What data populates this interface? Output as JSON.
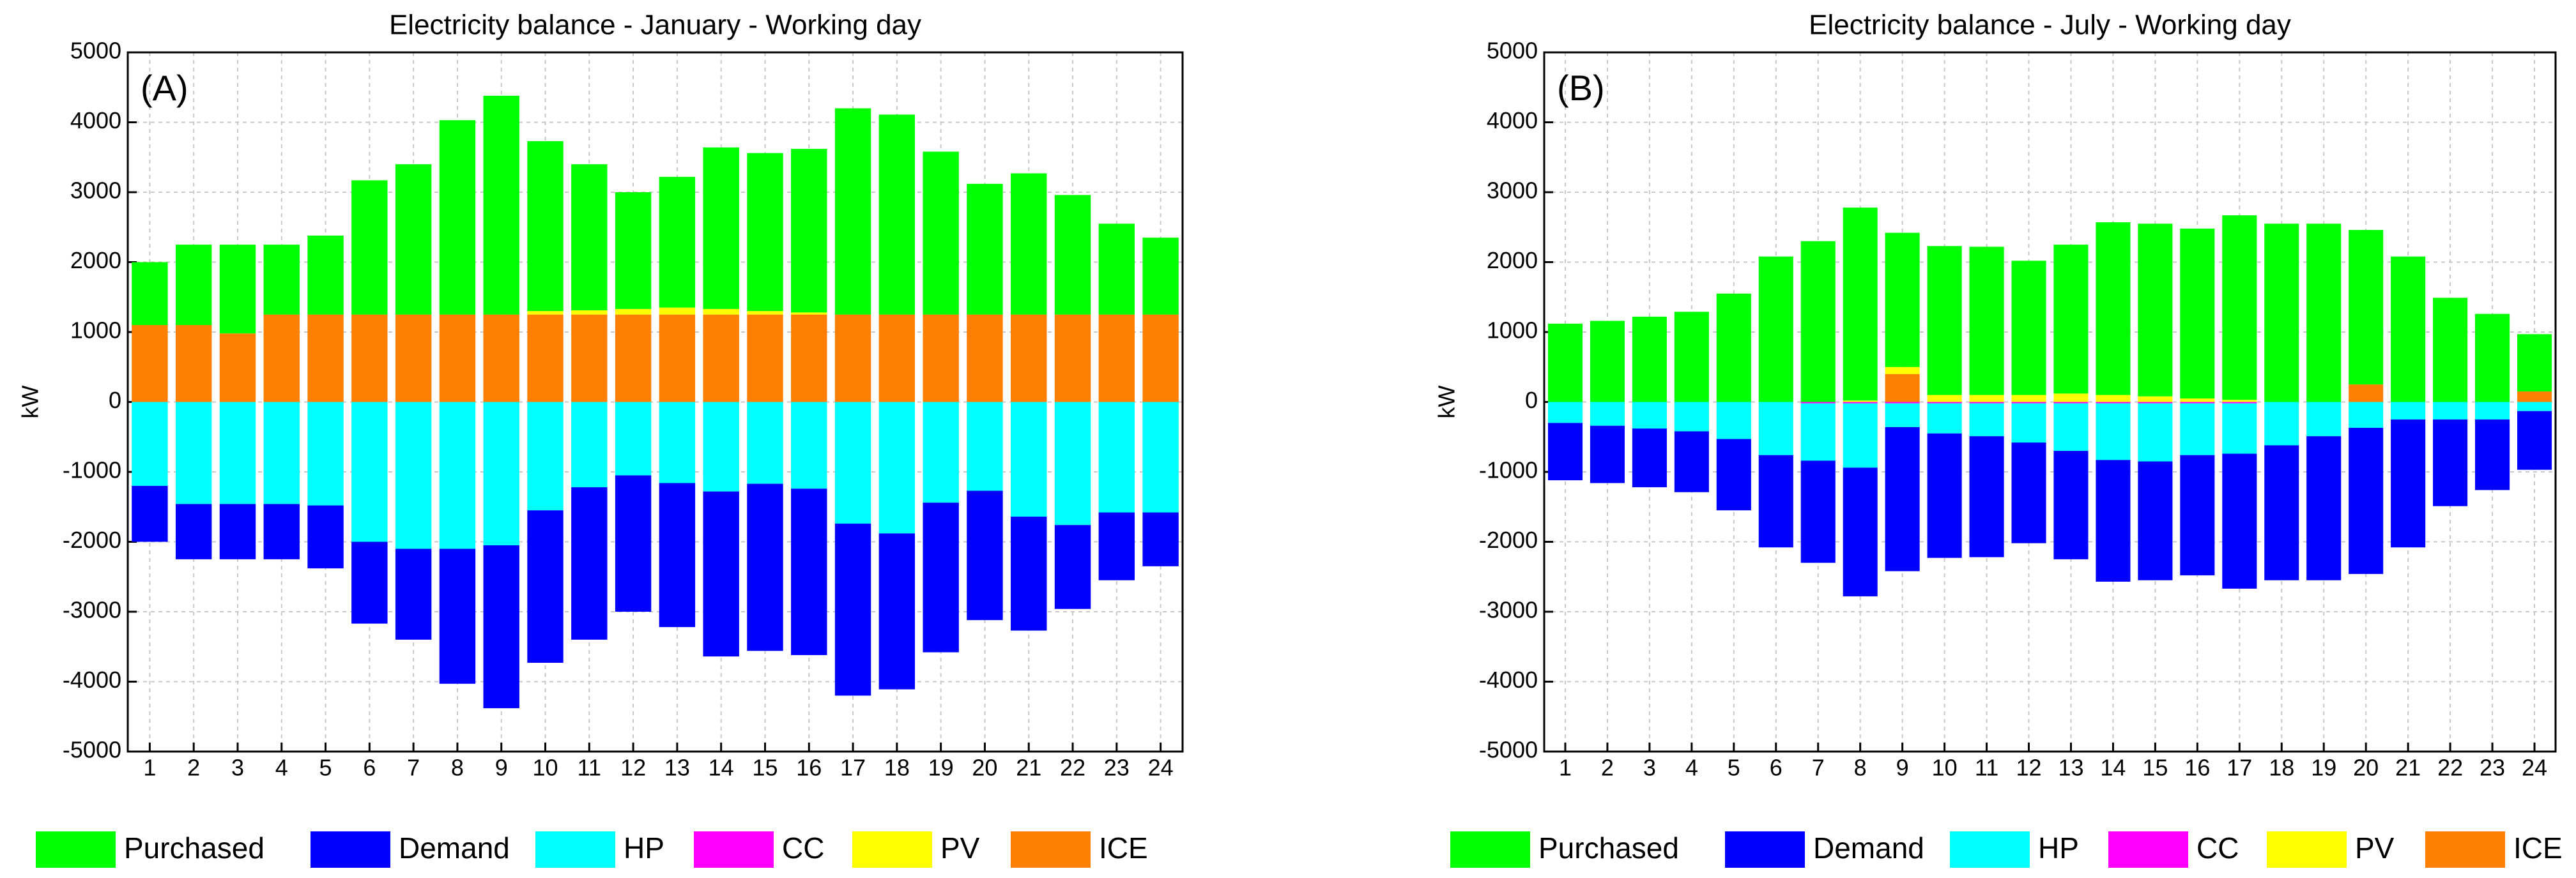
{
  "chart_data": [
    {
      "type": "bar",
      "title": "Electricity balance - January - Working day",
      "panel_label": "(A)",
      "ylabel": "kW",
      "categories": [
        "1",
        "2",
        "3",
        "4",
        "5",
        "6",
        "7",
        "8",
        "9",
        "10",
        "11",
        "12",
        "13",
        "14",
        "15",
        "16",
        "17",
        "18",
        "19",
        "20",
        "21",
        "22",
        "23",
        "24"
      ],
      "ylim": [
        -5000,
        5000
      ],
      "yticks": [
        -5000,
        -4000,
        -3000,
        -2000,
        -1000,
        0,
        1000,
        2000,
        3000,
        4000,
        5000
      ],
      "grid": true,
      "stacked": true,
      "series": [
        {
          "name": "Purchased",
          "color": "#00ff00",
          "values": [
            900,
            1150,
            1270,
            1000,
            1130,
            1920,
            2150,
            2780,
            3130,
            2430,
            2090,
            1670,
            1870,
            2310,
            2260,
            2340,
            2950,
            2860,
            2330,
            1870,
            2020,
            1710,
            1300,
            1100
          ]
        },
        {
          "name": "Demand",
          "color": "#0000ff",
          "values": [
            -800,
            -790,
            -790,
            -790,
            -900,
            -1170,
            -1300,
            -1930,
            -2330,
            -2180,
            -2180,
            -1950,
            -2060,
            -2360,
            -2390,
            -2380,
            -2460,
            -2230,
            -2140,
            -1850,
            -1630,
            -1200,
            -970,
            -770
          ]
        },
        {
          "name": "HP",
          "color": "#00ffff",
          "values": [
            -1200,
            -1460,
            -1460,
            -1460,
            -1480,
            -2000,
            -2100,
            -2100,
            -2050,
            -1550,
            -1220,
            -1050,
            -1160,
            -1280,
            -1170,
            -1240,
            -1740,
            -1880,
            -1440,
            -1270,
            -1640,
            -1760,
            -1580,
            -1580
          ]
        },
        {
          "name": "CC",
          "color": "#ff00ff",
          "values": [
            0,
            0,
            0,
            0,
            0,
            0,
            0,
            0,
            0,
            0,
            0,
            0,
            0,
            0,
            0,
            0,
            0,
            0,
            0,
            0,
            0,
            0,
            0,
            0
          ]
        },
        {
          "name": "PV",
          "color": "#ffff00",
          "values": [
            0,
            0,
            0,
            0,
            0,
            0,
            0,
            0,
            0,
            50,
            60,
            80,
            100,
            80,
            50,
            30,
            0,
            0,
            0,
            0,
            0,
            0,
            0,
            0
          ]
        },
        {
          "name": "ICE",
          "color": "#ff8000",
          "values": [
            1100,
            1100,
            980,
            1250,
            1250,
            1250,
            1250,
            1250,
            1250,
            1250,
            1250,
            1250,
            1250,
            1250,
            1250,
            1250,
            1250,
            1250,
            1250,
            1250,
            1250,
            1250,
            1250,
            1250
          ]
        }
      ]
    },
    {
      "type": "bar",
      "title": "Electricity balance - July - Working day",
      "panel_label": "(B)",
      "ylabel": "kW",
      "categories": [
        "1",
        "2",
        "3",
        "4",
        "5",
        "6",
        "7",
        "8",
        "9",
        "10",
        "11",
        "12",
        "13",
        "14",
        "15",
        "16",
        "17",
        "18",
        "19",
        "20",
        "21",
        "22",
        "23",
        "24"
      ],
      "ylim": [
        -5000,
        5000
      ],
      "yticks": [
        -5000,
        -4000,
        -3000,
        -2000,
        -1000,
        0,
        1000,
        2000,
        3000,
        4000,
        5000
      ],
      "grid": true,
      "stacked": true,
      "series": [
        {
          "name": "Purchased",
          "color": "#00ff00",
          "values": [
            1120,
            1160,
            1220,
            1290,
            1550,
            2080,
            2300,
            2760,
            1920,
            2130,
            2120,
            1920,
            2130,
            2470,
            2470,
            2430,
            2640,
            2550,
            2550,
            2210,
            2080,
            1490,
            1260,
            820
          ]
        },
        {
          "name": "Demand",
          "color": "#0000ff",
          "values": [
            -820,
            -820,
            -840,
            -870,
            -1020,
            -1320,
            -1460,
            -1840,
            -2060,
            -1780,
            -1730,
            -1440,
            -1550,
            -1740,
            -1700,
            -1720,
            -1930,
            -1930,
            -2060,
            -2090,
            -1830,
            -1240,
            -1010,
            -840
          ]
        },
        {
          "name": "HP",
          "color": "#00ffff",
          "values": [
            -300,
            -340,
            -380,
            -420,
            -530,
            -760,
            -820,
            -920,
            -340,
            -430,
            -470,
            -560,
            -680,
            -810,
            -830,
            -740,
            -720,
            -620,
            -490,
            -370,
            -250,
            -250,
            -250,
            -130
          ]
        },
        {
          "name": "CC",
          "color": "#ff00ff",
          "values": [
            0,
            0,
            0,
            0,
            0,
            0,
            -20,
            -20,
            -20,
            -20,
            -20,
            -20,
            -20,
            -20,
            -20,
            -20,
            -20,
            0,
            0,
            0,
            0,
            0,
            0,
            0
          ]
        },
        {
          "name": "PV",
          "color": "#ffff00",
          "values": [
            0,
            0,
            0,
            0,
            0,
            0,
            0,
            20,
            100,
            100,
            100,
            100,
            120,
            100,
            80,
            50,
            30,
            0,
            0,
            0,
            0,
            0,
            0,
            0
          ]
        },
        {
          "name": "ICE",
          "color": "#ff8000",
          "values": [
            0,
            0,
            0,
            0,
            0,
            0,
            0,
            0,
            400,
            0,
            0,
            0,
            0,
            0,
            0,
            0,
            0,
            0,
            0,
            250,
            0,
            0,
            0,
            150
          ]
        }
      ]
    }
  ]
}
